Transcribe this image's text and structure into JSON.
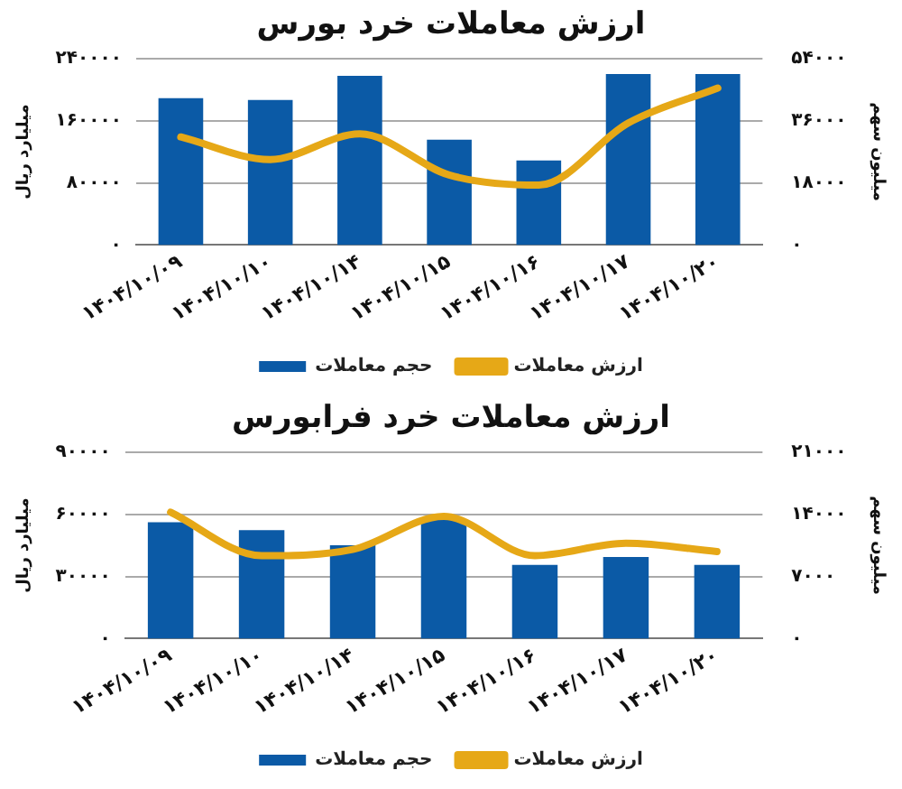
{
  "chart_data": [
    {
      "type": "bar",
      "title": "ارزش معاملات خرد بورس",
      "ylabel": "میلیارد ریال",
      "y2label": "میلیون سهم",
      "categories": [
        "۱۴۰۴/۱۰/۰۹",
        "۱۴۰۴/۱۰/۱۰",
        "۱۴۰۴/۱۰/۱۴",
        "۱۴۰۴/۱۰/۱۵",
        "۱۴۰۴/۱۰/۱۶",
        "۱۴۰۴/۱۰/۱۷",
        "۱۴۰۴/۱۰/۲۰"
      ],
      "series": [
        {
          "name": "حجم معاملات",
          "axis": "y2",
          "color": "#0b5aa6",
          "values": [
            42500,
            42000,
            49000,
            30500,
            24500,
            49500,
            49500
          ]
        },
        {
          "name": "ارزش معاملات",
          "type": "line",
          "color": "#e6a817",
          "values": [
            139000,
            110000,
            143000,
            90000,
            77000,
            157000,
            202000
          ]
        }
      ],
      "ylim": [
        0,
        240000
      ],
      "yticks": [
        {
          "value": 0,
          "label": "۰"
        },
        {
          "value": 80000,
          "label": "۸۰۰۰۰"
        },
        {
          "value": 160000,
          "label": "۱۶۰۰۰۰"
        },
        {
          "value": 240000,
          "label": "۲۴۰۰۰۰"
        }
      ],
      "y2lim": [
        0,
        54000
      ],
      "y2ticks": [
        {
          "value": 0,
          "label": "۰"
        },
        {
          "value": 18000,
          "label": "۱۸۰۰۰"
        },
        {
          "value": 36000,
          "label": "۳۶۰۰۰"
        },
        {
          "value": 54000,
          "label": "۵۴۰۰۰"
        }
      ],
      "grid": "y",
      "legend": "bottom"
    },
    {
      "type": "bar",
      "title": "ارزش معاملات خرد فرابورس",
      "ylabel": "میلیارد ریال",
      "y2label": "میلیون سهم",
      "categories": [
        "۱۴۰۴/۱۰/۰۹",
        "۱۴۰۴/۱۰/۱۰",
        "۱۴۰۴/۱۰/۱۴",
        "۱۴۰۴/۱۰/۱۵",
        "۱۴۰۴/۱۰/۱۶",
        "۱۴۰۴/۱۰/۱۷",
        "۱۴۰۴/۱۰/۲۰"
      ],
      "series": [
        {
          "name": "حجم معاملات",
          "axis": "y2",
          "color": "#0b5aa6",
          "values": [
            13100,
            12200,
            10500,
            13400,
            8300,
            9200,
            8300
          ]
        },
        {
          "name": "ارزش معاملات",
          "type": "line",
          "color": "#e6a817",
          "values": [
            61000,
            40000,
            43000,
            59000,
            40000,
            46000,
            42000
          ]
        }
      ],
      "ylim": [
        0,
        90000
      ],
      "yticks": [
        {
          "value": 0,
          "label": "۰"
        },
        {
          "value": 30000,
          "label": "۳۰۰۰۰"
        },
        {
          "value": 60000,
          "label": "۶۰۰۰۰"
        },
        {
          "value": 90000,
          "label": "۹۰۰۰۰"
        }
      ],
      "y2lim": [
        0,
        21000
      ],
      "y2ticks": [
        {
          "value": 0,
          "label": "۰"
        },
        {
          "value": 7000,
          "label": "۷۰۰۰"
        },
        {
          "value": 14000,
          "label": "۱۴۰۰۰"
        },
        {
          "value": 21000,
          "label": "۲۱۰۰۰"
        }
      ],
      "grid": "y",
      "legend": "bottom"
    }
  ]
}
